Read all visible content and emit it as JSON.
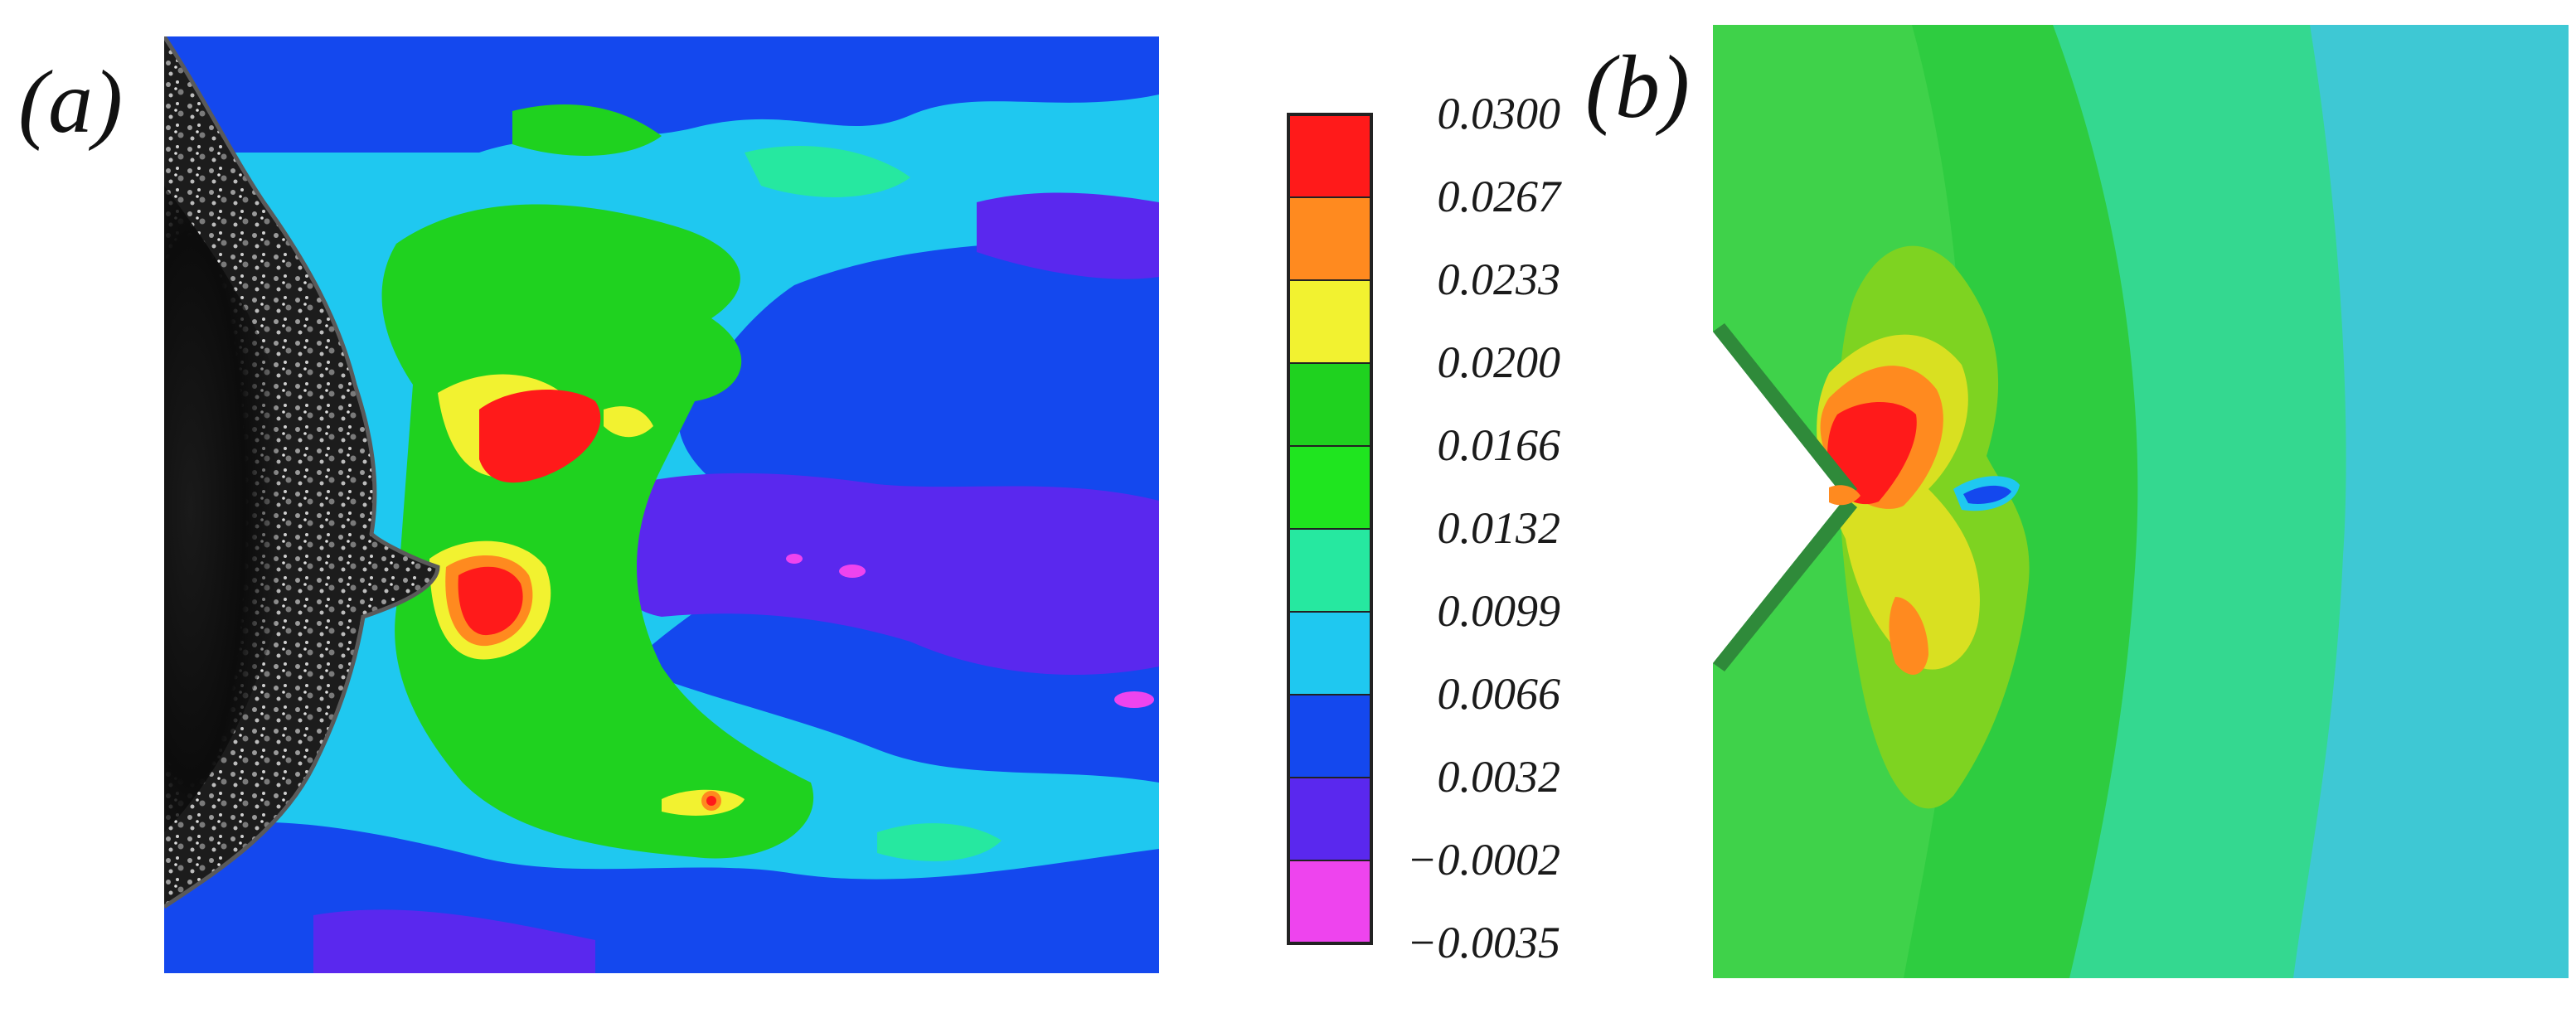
{
  "panels": {
    "a_label": "(a)",
    "b_label": "(b)"
  },
  "colorbar": {
    "ticks": [
      "0.0300",
      "0.0267",
      "0.0233",
      "0.0200",
      "0.0166",
      "0.0132",
      "0.0099",
      "0.0066",
      "0.0032",
      "−0.0002",
      "−0.0035"
    ],
    "bands": [
      "#ff1a1a",
      "#ff8a1f",
      "#f2f230",
      "#1fd21f",
      "#1fe51f",
      "#26e8a0",
      "#1fc8f0",
      "#1448ee",
      "#5a28ee",
      "#ee44ee"
    ]
  },
  "palette": {
    "red": "#ff1a1a",
    "orange": "#ff8a1f",
    "yellow": "#f2f230",
    "green": "#1fd21f",
    "bright_green": "#1fe51f",
    "teal": "#26e8a0",
    "cyan": "#1fc8f0",
    "blue": "#1448ee",
    "indigo": "#5a28ee",
    "magenta": "#ee44ee"
  }
}
